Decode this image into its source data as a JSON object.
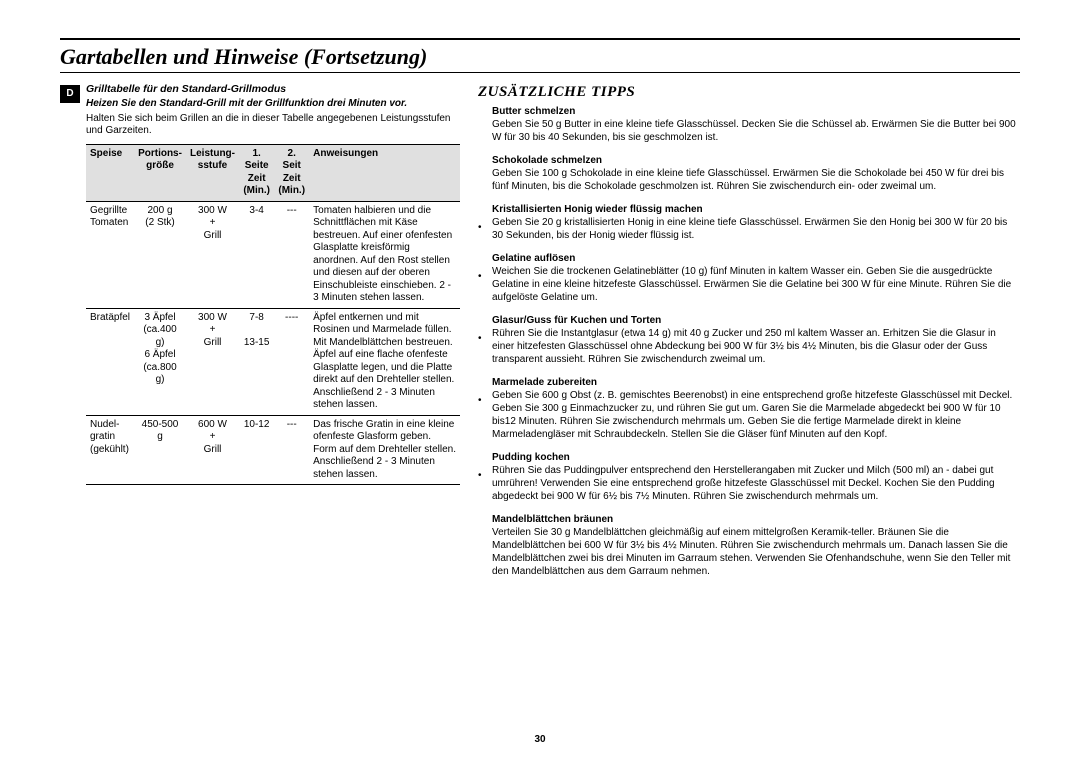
{
  "page": {
    "title": "Gartabellen und Hinweise (Fortsetzung)",
    "page_number": "30",
    "lang_badge": "D"
  },
  "left": {
    "subhead": "Grilltabelle für den Standard-Grillmodus",
    "preheat_note": "Heizen Sie den Standard-Grill mit der Grillfunktion drei Minuten vor.",
    "intro": "Halten Sie sich beim Grillen an die in dieser Tabelle angegebenen Leistungsstufen und Garzeiten."
  },
  "table": {
    "headers": {
      "c0": "Speise",
      "c1a": "Portions-",
      "c1b": "größe",
      "c2a": "Leistung-",
      "c2b": "sstufe",
      "c3a": "1. Seite",
      "c3b": "Zeit",
      "c3c": "(Min.)",
      "c4a": "2. Seit",
      "c4b": "Zeit",
      "c4c": "(Min.)",
      "c5": "Anweisungen"
    },
    "rows": [
      {
        "speise": "Gegrillte\nTomaten",
        "portion": "200 g\n(2 Stk)",
        "leistung": "300 W\n+\nGrill",
        "t1": "3-4",
        "t2": "---",
        "anw": "Tomaten halbieren und die Schnittflächen mit Käse bestreuen. Auf einer ofenfesten Glasplatte kreisförmig anordnen. Auf den Rost stellen und diesen auf der oberen Einschubleiste einschieben. 2 - 3 Minuten stehen lassen."
      },
      {
        "speise": "Bratäpfel",
        "portion": "3 Äpfel\n(ca.400 g)\n6 Äpfel\n(ca.800 g)",
        "leistung": "300 W\n+\nGrill",
        "t1": "7-8\n\n13-15",
        "t2": "----",
        "anw": "Äpfel entkernen und mit Rosinen und Marmelade füllen. Mit Mandelblättchen bestreuen. Äpfel auf eine flache ofenfeste Glasplatte legen, und die Platte direkt auf den Drehteller stellen. Anschließend 2 - 3 Minuten stehen lassen."
      },
      {
        "speise": "Nudel-\ngratin\n(gekühlt)",
        "portion": "450-500 g",
        "leistung": "600 W\n+\nGrill",
        "t1": "10-12",
        "t2": "---",
        "anw": "Das frische Gratin in eine kleine ofenfeste Glasform geben. Form auf dem Drehteller stellen. Anschließend 2 - 3 Minuten stehen lassen."
      }
    ]
  },
  "tips": {
    "title": "ZUSÄTZLICHE TIPPS",
    "items": [
      {
        "bullet": false,
        "head": "Butter schmelzen",
        "text": "Geben Sie 50 g Butter in eine kleine tiefe Glasschüssel. Decken Sie die Schüssel ab. Erwärmen Sie die Butter bei 900 W für 30 bis 40 Sekunden, bis sie geschmolzen ist."
      },
      {
        "bullet": false,
        "head": "Schokolade schmelzen",
        "text": "Geben Sie 100 g Schokolade in eine kleine tiefe Glasschüssel. Erwärmen Sie die Schokolade bei 450 W für drei bis fünf Minuten, bis die Schokolade geschmolzen ist. Rühren Sie zwischendurch ein- oder zweimal um."
      },
      {
        "bullet": true,
        "head": "Kristallisierten Honig wieder flüssig machen",
        "text": "Geben Sie 20 g kristallisierten Honig in eine kleine tiefe Glasschüssel. Erwärmen Sie den Honig bei 300 W für 20 bis 30 Sekunden, bis der Honig wieder flüssig ist."
      },
      {
        "bullet": true,
        "head": "Gelatine auflösen",
        "text": "Weichen Sie die trockenen Gelatineblätter (10 g) fünf Minuten in kaltem Wasser ein. Geben Sie die ausgedrückte Gelatine in eine kleine hitzefeste Glasschüssel. Erwärmen Sie die Gelatine bei 300 W für eine Minute. Rühren Sie die aufgelöste Gelatine um."
      },
      {
        "bullet": true,
        "head": "Glasur/Guss für Kuchen und Torten",
        "text": "Rühren Sie die Instantglasur (etwa 14 g) mit 40 g Zucker und 250 ml kaltem Wasser an. Erhitzen Sie die Glasur in einer hitzefesten Glasschüssel ohne Abdeckung bei 900 W für 3½ bis 4½ Minuten, bis die Glasur oder der Guss transparent aussieht. Rühren Sie zwischendurch zweimal um."
      },
      {
        "bullet": true,
        "head": "Marmelade zubereiten",
        "text": "Geben Sie 600 g Obst (z. B. gemischtes Beerenobst) in eine entsprechend große hitzefeste Glasschüssel mit Deckel. Geben Sie 300 g Einmachzucker zu, und rühren Sie gut um. Garen Sie die Marmelade abgedeckt bei 900 W für 10 bis12 Minuten. Rühren Sie zwischendurch mehrmals um. Geben Sie die fertige Marmelade direkt in kleine Marmeladengläser mit Schraubdeckeln. Stellen Sie die Gläser fünf Minuten auf den Kopf."
      },
      {
        "bullet": true,
        "head": "Pudding kochen",
        "text": "Rühren Sie das Puddingpulver entsprechend den Herstellerangaben mit Zucker und Milch (500 ml) an - dabei gut umrühren! Verwenden Sie eine entsprechend große hitzefeste Glasschüssel mit Deckel. Kochen Sie den Pudding abgedeckt bei 900 W für 6½ bis 7½ Minuten. Rühren Sie zwischendurch mehrmals um."
      },
      {
        "bullet": false,
        "head": "Mandelblättchen bräunen",
        "text": "Verteilen Sie 30 g Mandelblättchen gleichmäßig auf einem mittelgroßen Keramik-teller. Bräunen Sie die Mandelblättchen bei 600 W für 3½ bis 4½ Minuten. Rühren Sie zwischendurch mehrmals um. Danach lassen Sie die Mandelblättchen zwei bis drei Minuten im Garraum stehen. Verwenden Sie Ofenhandschuhe, wenn Sie den Teller mit den Mandelblättchen aus dem Garraum nehmen."
      }
    ]
  }
}
